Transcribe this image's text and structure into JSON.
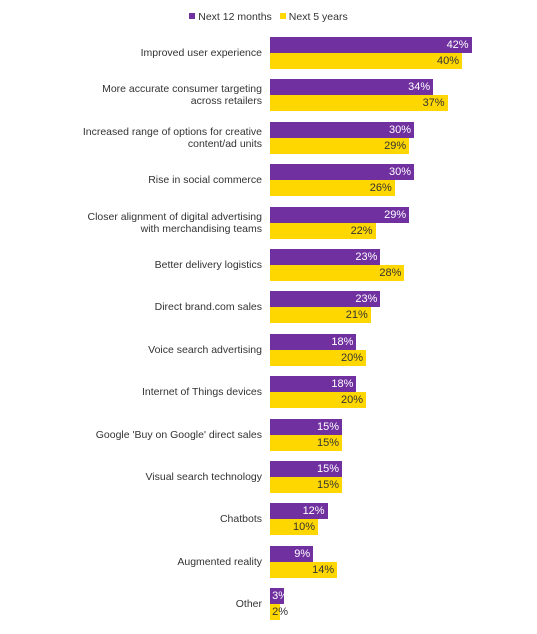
{
  "chart_data": {
    "type": "bar",
    "orientation": "horizontal",
    "categories": [
      "Improved user experience",
      "More accurate consumer targeting across retailers",
      "Increased range of options for creative content/ad units",
      "Rise in social commerce",
      "Closer alignment of digital advertising with merchandising teams",
      "Better delivery logistics",
      "Direct brand.com sales",
      "Voice search advertising",
      "Internet of Things devices",
      "Google 'Buy on Google' direct sales",
      "Visual search technology",
      "Chatbots",
      "Augmented reality",
      "Other"
    ],
    "series": [
      {
        "name": "Next 12 months",
        "color": "#7030a0",
        "label_color": "#ffffff",
        "values": [
          42,
          34,
          30,
          30,
          29,
          23,
          23,
          18,
          18,
          15,
          15,
          12,
          9,
          3
        ],
        "value_labels": [
          "42%",
          "34%",
          "30%",
          "30%",
          "29%",
          "23%",
          "23%",
          "18%",
          "18%",
          "15%",
          "15%",
          "12%",
          "9%",
          "3%"
        ]
      },
      {
        "name": "Next 5 years",
        "color": "#ffd700",
        "label_color": "#333333",
        "values": [
          40,
          37,
          29,
          26,
          22,
          28,
          21,
          20,
          20,
          15,
          15,
          10,
          14,
          2
        ],
        "value_labels": [
          "40%",
          "37%",
          "29%",
          "26%",
          "22%",
          "28%",
          "21%",
          "20%",
          "20%",
          "15%",
          "15%",
          "10%",
          "14%",
          "2%"
        ]
      }
    ],
    "legend": "top"
  }
}
